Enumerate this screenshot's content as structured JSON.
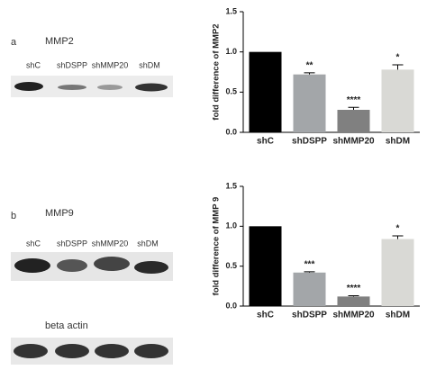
{
  "blots": [
    {
      "letter": "a",
      "protein": "MMP2",
      "lanes": [
        "shC",
        "shDSPP",
        "shMMP20",
        "shDM"
      ]
    },
    {
      "letter": "b",
      "protein": "MMP9",
      "lanes": [
        "shC",
        "shDSPP",
        "shMMP20",
        "shDM"
      ]
    }
  ],
  "loading_control": "beta actin",
  "chart_data": [
    {
      "type": "bar",
      "y_label": "fold difference of MMP2",
      "categories": [
        "shC",
        "shDSPP",
        "shMMP20",
        "shDM"
      ],
      "values": [
        1.0,
        0.72,
        0.28,
        0.78
      ],
      "errors": [
        null,
        0.02,
        0.03,
        0.06
      ],
      "annotations": [
        null,
        "**",
        "****",
        "*"
      ],
      "colors": [
        "#000000",
        "#a3a6a9",
        "#808080",
        "#d9d9d5"
      ],
      "ylim": [
        0,
        1.5
      ],
      "yticks": [
        {
          "value": 0,
          "label": "0.0"
        },
        0.5,
        {
          "value": 1,
          "label": "1.0"
        },
        1.5
      ]
    },
    {
      "type": "bar",
      "y_label": "fold difference of MMP 9",
      "categories": [
        "shC",
        "shDSPP",
        "shMMP20",
        "shDM"
      ],
      "values": [
        1.0,
        0.42,
        0.12,
        0.84
      ],
      "errors": [
        null,
        0.01,
        0.01,
        0.04
      ],
      "annotations": [
        null,
        "***",
        "****",
        "*"
      ],
      "colors": [
        "#000000",
        "#a3a6a9",
        "#808080",
        "#d9d9d5"
      ],
      "ylim": [
        0,
        1.5
      ],
      "yticks": [
        {
          "value": 0,
          "label": "0.0"
        },
        0.5,
        {
          "value": 1,
          "label": "1.0"
        },
        1.5
      ]
    }
  ]
}
